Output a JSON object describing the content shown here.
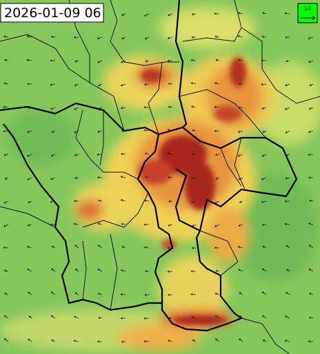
{
  "timestamp": "2026-01-09 06",
  "legend": {
    "label": "10"
  }
}
